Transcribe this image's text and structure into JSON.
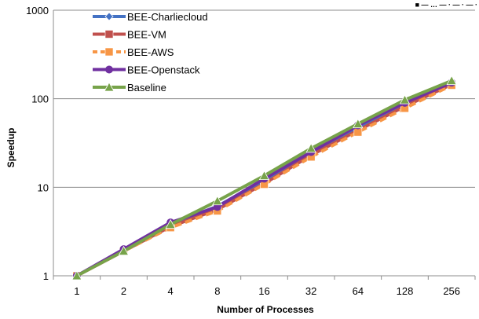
{
  "corner_text": "■ — … — · — · — ·",
  "chart_data": {
    "type": "line",
    "title": "",
    "xlabel": "Number of Processes",
    "ylabel": "Speedup",
    "yscale": "log",
    "ylim": [
      1,
      1000
    ],
    "yticks": [
      1,
      10,
      100,
      1000
    ],
    "grid": "horizontal",
    "legend_position": "top-left",
    "categories": [
      "1",
      "2",
      "4",
      "8",
      "16",
      "32",
      "64",
      "128",
      "256"
    ],
    "series": [
      {
        "name": "BEE-Charliecloud",
        "color": "#4472C4",
        "marker": "diamond",
        "values": [
          1,
          1.95,
          3.8,
          6.1,
          12,
          24,
          48,
          88,
          150
        ]
      },
      {
        "name": "BEE-VM",
        "color": "#C0504D",
        "marker": "square",
        "values": [
          1,
          1.9,
          3.6,
          5.6,
          11,
          23,
          44,
          82,
          145
        ]
      },
      {
        "name": "BEE-AWS",
        "color": "#F79646",
        "marker": "square",
        "values": [
          1,
          1.9,
          3.5,
          5.4,
          10.8,
          22,
          42,
          78,
          142
        ]
      },
      {
        "name": "BEE-Openstack",
        "color": "#7030A0",
        "marker": "circle",
        "values": [
          1,
          2.0,
          4.0,
          6.0,
          12.5,
          25,
          50,
          90,
          152
        ]
      },
      {
        "name": "Baseline",
        "color": "#77A34A",
        "marker": "triangle",
        "values": [
          1,
          1.9,
          3.8,
          7.0,
          13.5,
          27.5,
          52,
          97,
          160
        ]
      }
    ]
  }
}
